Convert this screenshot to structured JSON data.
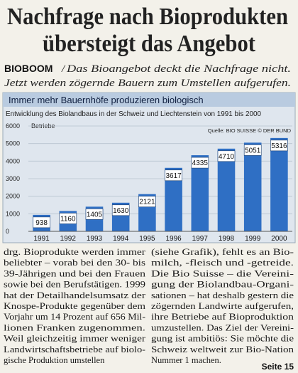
{
  "headline": [
    "Nachfrage nach Bioprodukten",
    "übersteigt das Angebot"
  ],
  "kicker": {
    "label": "BIOBOOM",
    "separator": "/",
    "lines": [
      "Das Bioangebot deckt die Nachfrage nicht.",
      "Jetzt werden zögernde Bauern zum Umstellen aufgerufen."
    ]
  },
  "chart_data": {
    "type": "bar",
    "title": "Immer mehr Bauernhöfe produzieren biologisch",
    "subtitle": "Entwicklung des Biolandbaus in der Schweiz und Liechtenstein von 1991 bis 2000",
    "y_label": "Betriebe",
    "source": "Quelle: BIO SUISSE © DER BUND",
    "categories": [
      "1991",
      "1992",
      "1993",
      "1994",
      "1995",
      "1996",
      "1997",
      "1998",
      "1999",
      "2000"
    ],
    "values": [
      938,
      1160,
      1405,
      1630,
      2121,
      3617,
      4335,
      4710,
      5051,
      5316
    ],
    "color": "#2f6fc4",
    "ylim": [
      0,
      6000
    ],
    "yticks": [
      0,
      1000,
      2000,
      3000,
      4000,
      5000,
      6000
    ],
    "grid": true
  },
  "article": {
    "columns": [
      [
        "drg. Bioprodukte werden immer",
        "beliebter – vorab bei den 30- bis",
        "39-Jährigen und bei den Frauen",
        "sowie bei den Berufstätigen. 1999",
        "hat der Detailhandelsumsatz der",
        "Knospe-Produkte gegenüber dem",
        "Vorjahr um 14 Prozent auf 656 Mil-",
        "lionen Franken zugenommen.",
        "Weil gleichzeitig immer weniger",
        "Landwirtschaftsbetriebe auf biolo-",
        "gische Produktion umstellen"
      ],
      [
        "(siehe Grafik), fehlt es an Bio-",
        "milch, -fleisch und -getreide.",
        "Die Bio Suisse – die Vereini-",
        "gung der Biolandbau-Organi-",
        "sationen – hat deshalb gestern die",
        "zögernden Landwirte aufgerufen,",
        "ihre Betriebe auf Bioproduktion",
        "umzustellen. Das Ziel der Vereini-",
        "gung ist ambitiös: Sie möchte die",
        "Schweiz weltweit zur Bio-Nation",
        "Nummer 1 machen."
      ]
    ],
    "page_ref": "Seite 15"
  }
}
